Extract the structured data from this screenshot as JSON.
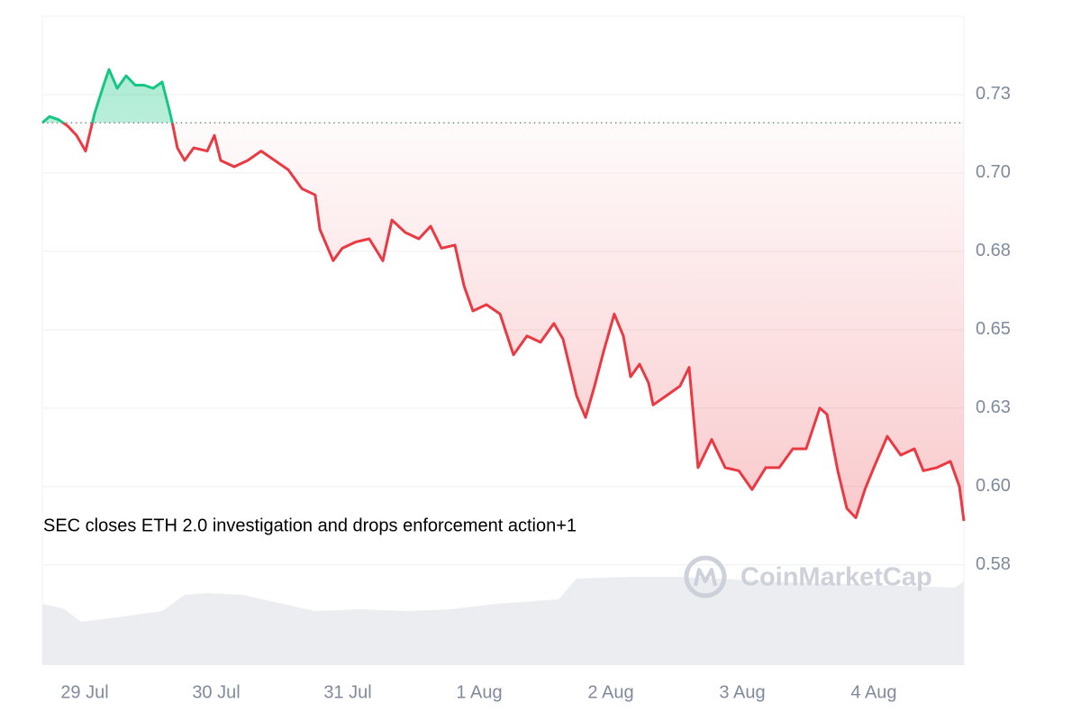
{
  "chart_data": {
    "type": "line",
    "annotation": "SEC closes ETH 2.0 investigation and drops enforcement action+1",
    "watermark": "CoinMarketCap",
    "x": [
      -0.322,
      -0.267,
      -0.199,
      -0.13,
      -0.062,
      0.007,
      0.075,
      0.144,
      0.185,
      0.247,
      0.315,
      0.384,
      0.452,
      0.521,
      0.589,
      0.644,
      0.671,
      0.705,
      0.76,
      0.829,
      0.932,
      0.986,
      1.034,
      1.137,
      1.24,
      1.342,
      1.445,
      1.548,
      1.651,
      1.753,
      1.788,
      1.89,
      1.959,
      2.062,
      2.164,
      2.267,
      2.336,
      2.438,
      2.541,
      2.63,
      2.712,
      2.815,
      2.884,
      2.952,
      3.055,
      3.158,
      3.26,
      3.363,
      3.466,
      3.568,
      3.637,
      3.74,
      3.808,
      3.877,
      3.945,
      4.027,
      4.096,
      4.151,
      4.219,
      4.288,
      4.322,
      4.425,
      4.527,
      4.596,
      4.664,
      4.767,
      4.87,
      4.973,
      5.075,
      5.178,
      5.281,
      5.384,
      5.486,
      5.589,
      5.644,
      5.726,
      5.795,
      5.863,
      5.932,
      6.0,
      6.103,
      6.205,
      6.308,
      6.377,
      6.479,
      6.582,
      6.651,
      6.685
    ],
    "values": [
      0.716,
      0.718,
      0.717,
      0.715,
      0.712,
      0.707,
      0.719,
      0.728,
      0.733,
      0.727,
      0.731,
      0.728,
      0.728,
      0.727,
      0.729,
      0.72,
      0.715,
      0.708,
      0.704,
      0.708,
      0.707,
      0.712,
      0.704,
      0.702,
      0.704,
      0.707,
      0.704,
      0.701,
      0.695,
      0.693,
      0.682,
      0.672,
      0.676,
      0.678,
      0.679,
      0.672,
      0.685,
      0.681,
      0.679,
      0.683,
      0.676,
      0.677,
      0.664,
      0.656,
      0.658,
      0.655,
      0.642,
      0.648,
      0.646,
      0.652,
      0.647,
      0.629,
      0.622,
      0.632,
      0.643,
      0.655,
      0.648,
      0.635,
      0.639,
      0.633,
      0.626,
      0.629,
      0.632,
      0.638,
      0.606,
      0.615,
      0.606,
      0.605,
      0.599,
      0.606,
      0.606,
      0.612,
      0.612,
      0.625,
      0.623,
      0.605,
      0.593,
      0.59,
      0.599,
      0.606,
      0.616,
      0.61,
      0.612,
      0.605,
      0.606,
      0.608,
      0.6,
      0.589
    ],
    "baseline": 0.716,
    "up_color": "#16c784",
    "down_color": "#ea3943",
    "volume": {
      "x": [
        -0.322,
        -0.164,
        -0.027,
        0.247,
        0.589,
        0.76,
        0.932,
        1.205,
        1.411,
        1.753,
        2.096,
        2.438,
        2.781,
        3.123,
        3.603,
        3.74,
        4.151,
        4.493,
        4.836,
        5.178,
        5.521,
        5.863,
        6.205,
        6.616,
        6.685
      ],
      "values": [
        68,
        63,
        48,
        53,
        60,
        78,
        80,
        78,
        71,
        60,
        62,
        60,
        62,
        68,
        73,
        96,
        98,
        98,
        96,
        93,
        91,
        90,
        88,
        86,
        93
      ],
      "color": "#ebedf1"
    },
    "xlim": [
      -0.322,
      6.685
    ],
    "xticks": [
      {
        "value": 0,
        "label": "29 Jul"
      },
      {
        "value": 1,
        "label": "30 Jul"
      },
      {
        "value": 2,
        "label": "31 Jul"
      },
      {
        "value": 3,
        "label": "1 Aug"
      },
      {
        "value": 4,
        "label": "2 Aug"
      },
      {
        "value": 5,
        "label": "3 Aug"
      },
      {
        "value": 6,
        "label": "4 Aug"
      }
    ],
    "ylim": [
      0.543,
      0.75
    ],
    "yticks": [
      {
        "value": 0.575,
        "label": "0.58"
      },
      {
        "value": 0.6,
        "label": "0.60"
      },
      {
        "value": 0.625,
        "label": "0.63"
      },
      {
        "value": 0.65,
        "label": "0.65"
      },
      {
        "value": 0.675,
        "label": "0.68"
      },
      {
        "value": 0.7,
        "label": "0.70"
      },
      {
        "value": 0.725,
        "label": "0.73"
      }
    ],
    "grid": true
  }
}
